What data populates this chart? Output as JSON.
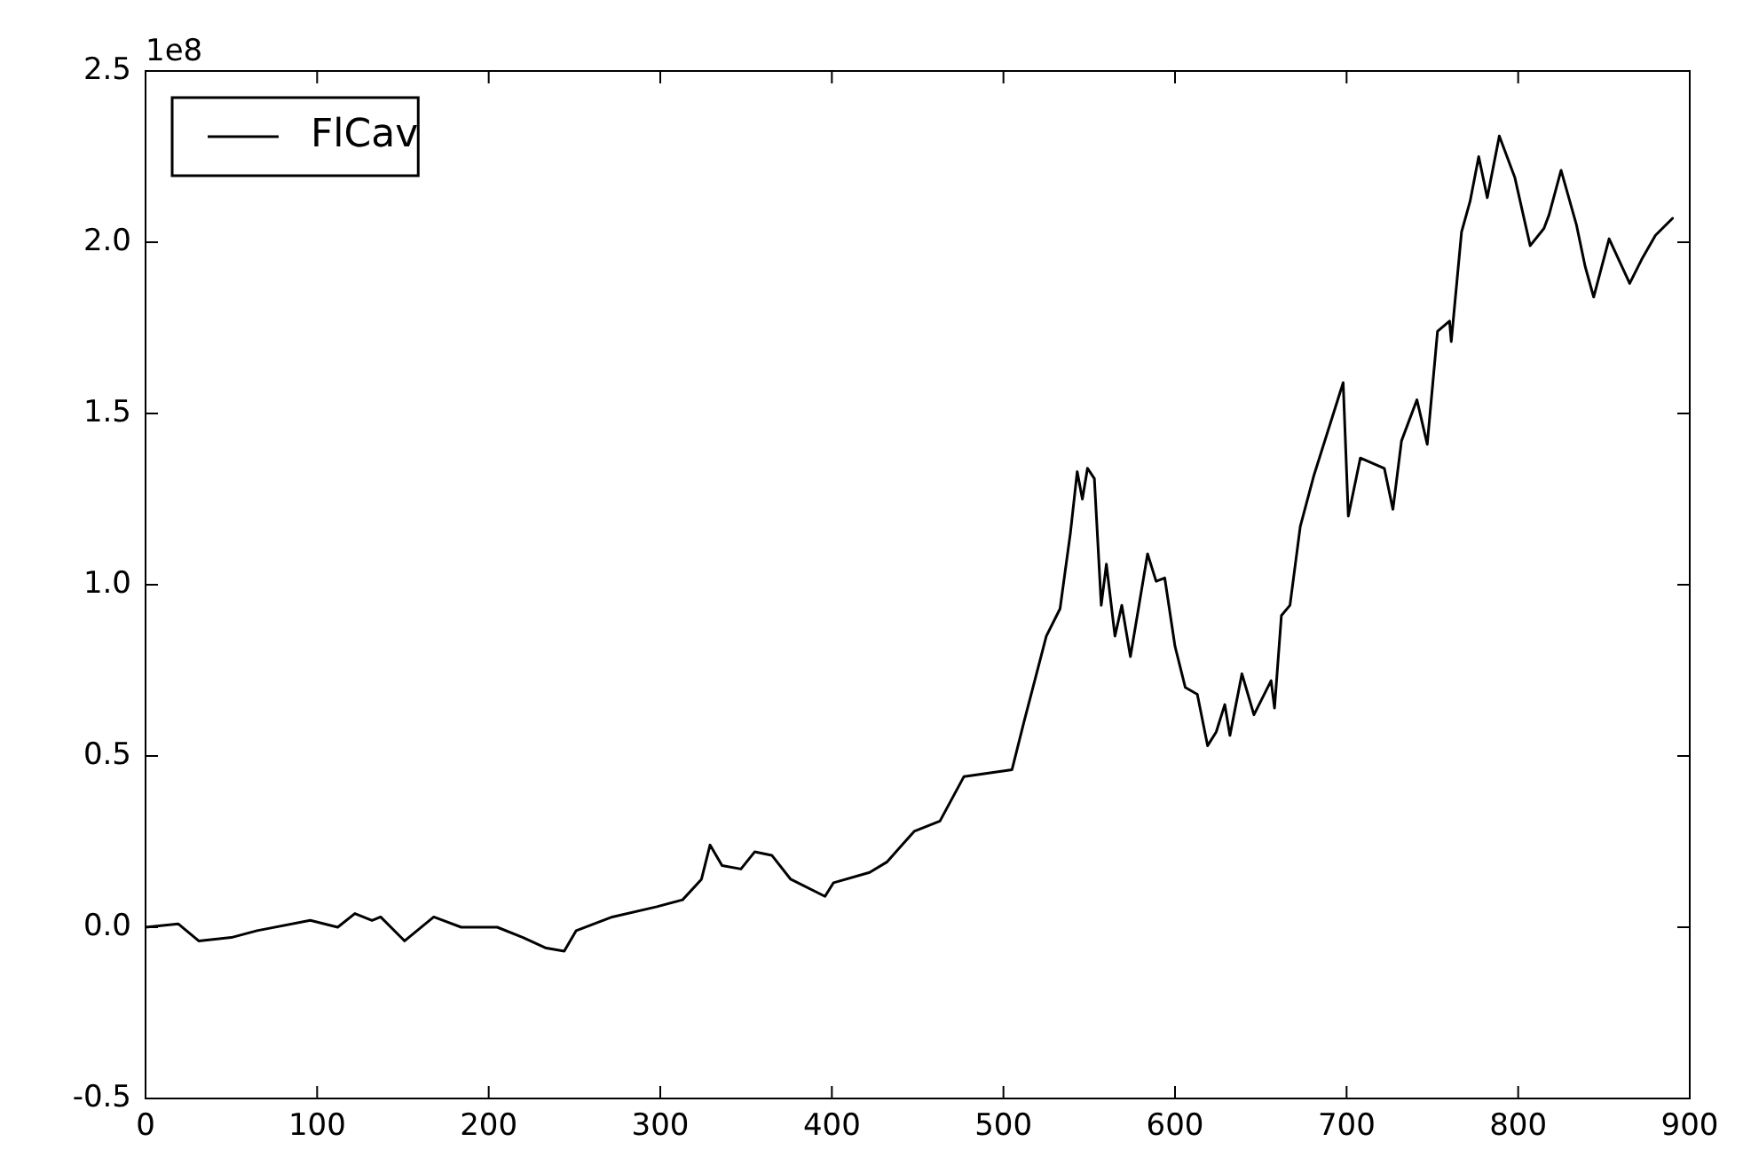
{
  "chart_data": {
    "type": "line",
    "legend": "top left",
    "grid": false,
    "marker": "none",
    "line_style": "solid",
    "annotations": [
      "1e8"
    ],
    "xlim": [
      0,
      900
    ],
    "xticks": [
      0,
      100,
      200,
      300,
      400,
      500,
      600,
      700,
      800,
      900
    ],
    "ylim": [
      -0.5,
      2.5
    ],
    "yticks": [
      -0.5,
      {
        "value": 0,
        "label": "0.0"
      },
      0.5,
      {
        "value": 1,
        "label": "1.0"
      },
      1.5,
      {
        "value": 2,
        "label": "2.0"
      },
      2.5
    ],
    "series": [
      {
        "name": "FlCav",
        "color": "#000000",
        "x": [
          0,
          19,
          31,
          50,
          65,
          96,
          112,
          122,
          132,
          137,
          151,
          168,
          184,
          205,
          220,
          233,
          244,
          251,
          272,
          298,
          313,
          324,
          329,
          336,
          347,
          355,
          365,
          376,
          396,
          401,
          422,
          432,
          448,
          463,
          477,
          505,
          512,
          525,
          533,
          539,
          543,
          546,
          549,
          553,
          557,
          560,
          565,
          569,
          574,
          579,
          584,
          589,
          594,
          600,
          606,
          613,
          619,
          624,
          629,
          632,
          639,
          646,
          656,
          658,
          662,
          667,
          673,
          681,
          698,
          701,
          708,
          722,
          727,
          732,
          741,
          747,
          753,
          760,
          761,
          767,
          772,
          777,
          782,
          789,
          798,
          807,
          815,
          818,
          825,
          834,
          839,
          844,
          853,
          865,
          872,
          880,
          890
        ],
        "values": [
          0.0,
          0.01,
          -0.04,
          -0.03,
          -0.01,
          0.02,
          0.0,
          0.04,
          0.02,
          0.03,
          -0.04,
          0.03,
          0.0,
          0.0,
          -0.03,
          -0.06,
          -0.07,
          -0.01,
          0.03,
          0.06,
          0.08,
          0.14,
          0.24,
          0.18,
          0.17,
          0.22,
          0.21,
          0.14,
          0.09,
          0.13,
          0.16,
          0.19,
          0.28,
          0.31,
          0.44,
          0.46,
          0.6,
          0.85,
          0.93,
          1.15,
          1.33,
          1.25,
          1.34,
          1.31,
          0.94,
          1.06,
          0.85,
          0.94,
          0.79,
          0.94,
          1.09,
          1.01,
          1.02,
          0.82,
          0.7,
          0.68,
          0.53,
          0.57,
          0.65,
          0.56,
          0.74,
          0.62,
          0.72,
          0.64,
          0.91,
          0.94,
          1.17,
          1.32,
          1.59,
          1.2,
          1.37,
          1.34,
          1.22,
          1.42,
          1.54,
          1.41,
          1.74,
          1.77,
          1.71,
          2.03,
          2.12,
          2.25,
          2.13,
          2.31,
          2.19,
          1.99,
          2.04,
          2.08,
          2.21,
          2.05,
          1.93,
          1.84,
          2.01,
          1.88,
          1.95,
          2.02,
          2.07
        ]
      }
    ]
  }
}
